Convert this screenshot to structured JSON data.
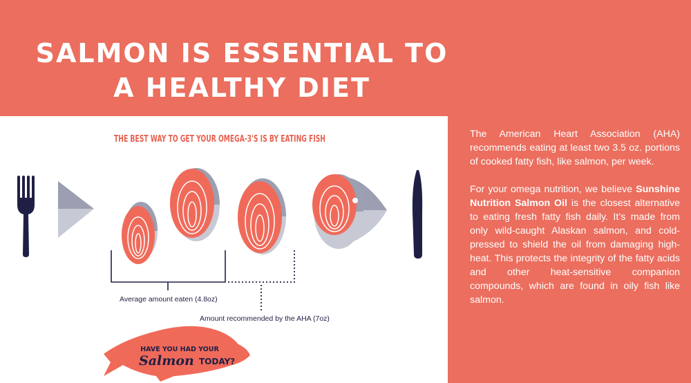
{
  "title": "SALMON IS ESSENTIAL TO A HEALTHY DIET",
  "infographic": {
    "heading": "THE BEST WAY TO GET YOUR OMEGA-3'S IS BY EATING FISH",
    "label_average": "Average amount eaten (4.8oz)",
    "label_recommended": "Amount recommended by the AHA (7oz)",
    "badge_line1": "HAVE YOU HAD YOUR",
    "badge_salmon": "Salmon",
    "badge_today": "TODAY?"
  },
  "body": {
    "p1": "The American Heart Association (AHA) recommends eating at least two 3.5 oz. portions of cooked fatty fish, like salmon, per week.",
    "p2_before": "For your omega nutrition, we believe ",
    "p2_brand": "Sunshine Nutrition Salmon Oil",
    "p2_after": " is the closest alternative to eating fresh fatty fish daily. It’s made from only wild-caught Alaskan salmon, and cold-pressed to shield the oil from damaging high-heat. This protects the integrity of the fatty acids and other heat-sensitive companion compounds, which are found in oily fish like salmon."
  },
  "colors": {
    "background": "#eb6e5e",
    "salmon": "#f06a5a",
    "navy": "#1f1f45",
    "grey_dark": "#9b9fb1",
    "grey_light": "#c7c9d4"
  }
}
